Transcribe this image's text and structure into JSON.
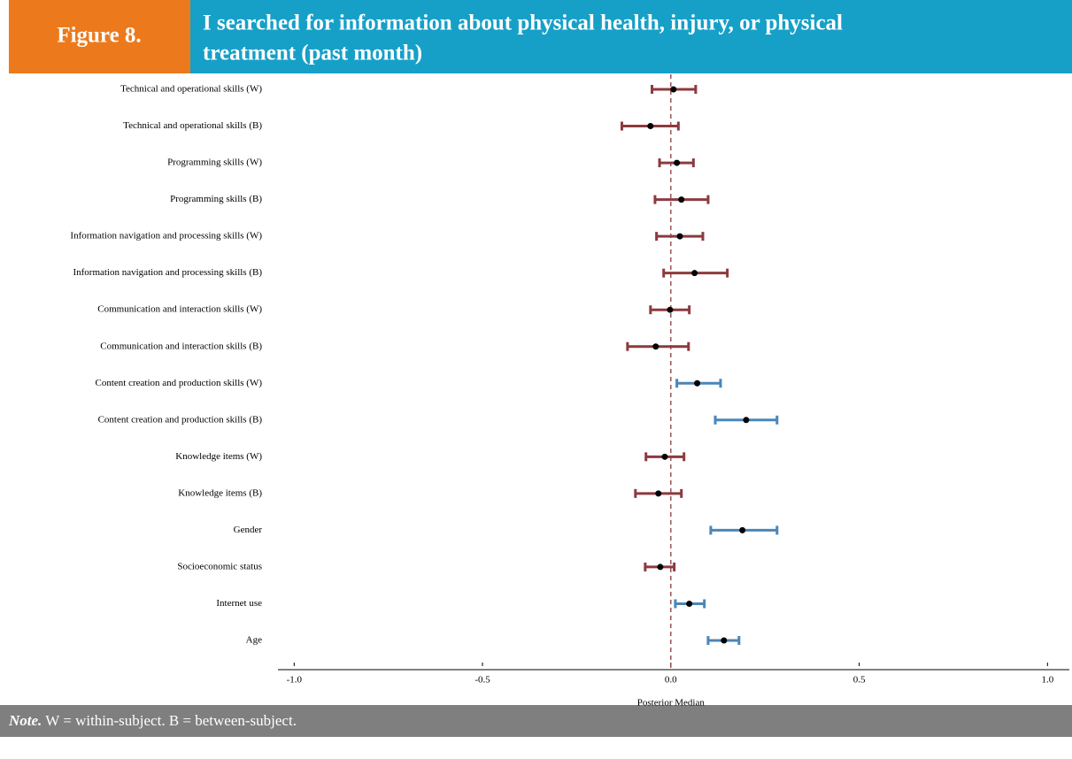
{
  "header": {
    "figure": "Figure 8.",
    "title_line1": "I searched for information about physical health, injury, or physical",
    "title_line2": "treatment (past month)"
  },
  "chart_data": {
    "type": "dotwhisker",
    "categories": [
      "Technical and operational skills (W)",
      "Technical and operational skills (B)",
      "Programming skills (W)",
      "Programming skills (B)",
      "Information navigation and processing skills (W)",
      "Information navigation and processing skills (B)",
      "Communication and interaction skills (W)",
      "Communication and interaction skills (B)",
      "Content creation and production skills (W)",
      "Content creation and production skills (B)",
      "Knowledge items (W)",
      "Knowledge items (B)",
      "Gender",
      "Socioeconomic status",
      "Internet use",
      "Age"
    ],
    "values": [
      0.007,
      -0.054,
      0.016,
      0.028,
      0.024,
      0.063,
      -0.002,
      -0.04,
      0.07,
      0.2,
      -0.016,
      -0.033,
      0.19,
      -0.028,
      0.049,
      0.141
    ],
    "lower": [
      -0.05,
      -0.13,
      -0.03,
      -0.042,
      -0.038,
      -0.019,
      -0.054,
      -0.115,
      0.016,
      0.118,
      -0.066,
      -0.094,
      0.106,
      -0.068,
      0.012,
      0.099
    ],
    "upper": [
      0.066,
      0.02,
      0.06,
      0.099,
      0.085,
      0.15,
      0.049,
      0.047,
      0.132,
      0.282,
      0.035,
      0.028,
      0.282,
      0.009,
      0.089,
      0.181
    ],
    "colors": [
      "#8c3a3f",
      "#8c3a3f",
      "#8c3a3f",
      "#8c3a3f",
      "#8c3a3f",
      "#8c3a3f",
      "#8c3a3f",
      "#8c3a3f",
      "#4a86b8",
      "#4a86b8",
      "#8c3a3f",
      "#8c3a3f",
      "#4a86b8",
      "#8c3a3f",
      "#4a86b8",
      "#4a86b8"
    ],
    "point_color": "#000000",
    "reference_x": 0,
    "xlim": [
      -1.043,
      1.058
    ],
    "xticks": [
      {
        "value": -1,
        "label": "-1.0"
      },
      -0.5,
      {
        "value": 0,
        "label": "0.0"
      },
      0.5,
      {
        "value": 1,
        "label": "1.0"
      }
    ],
    "xlabel": "Posterior Median"
  },
  "note": {
    "label": "Note.",
    "text": " W = within-subject. B = between-subject."
  }
}
